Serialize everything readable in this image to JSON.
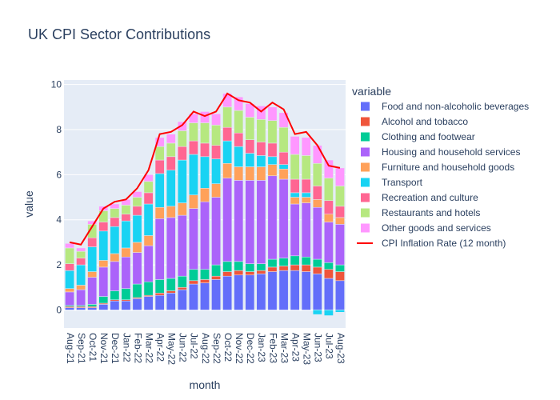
{
  "chart_data": {
    "type": "bar",
    "title": "UK CPI Sector Contributions",
    "xlabel": "month",
    "ylabel": "value",
    "ylim": [
      -0.8,
      10.2
    ],
    "yticks": [
      0,
      2,
      4,
      6,
      8,
      10
    ],
    "grid": true,
    "barmode": "relative",
    "legend_title": "variable",
    "legend_position": "right",
    "categories": [
      "Aug-21",
      "Sep-21",
      "Oct-21",
      "Nov-21",
      "Dec-21",
      "Jan-22",
      "Feb-22",
      "Mar-22",
      "Apr-22",
      "May-22",
      "Jun-22",
      "Jul-22",
      "Aug-22",
      "Sep-22",
      "Oct-22",
      "Nov-22",
      "Dec-22",
      "Jan-23",
      "Feb-23",
      "Mar-23",
      "Apr-23",
      "May-23",
      "Jun-23",
      "Jul-23",
      "Aug-23"
    ],
    "series": [
      {
        "name": "Food and non-alcoholic beverages",
        "color": "#636efa",
        "values": [
          0.1,
          0.1,
          0.1,
          0.25,
          0.4,
          0.4,
          0.5,
          0.6,
          0.65,
          0.75,
          0.9,
          1.15,
          1.2,
          1.35,
          1.5,
          1.55,
          1.55,
          1.6,
          1.7,
          1.75,
          1.75,
          1.7,
          1.6,
          1.4,
          1.3
        ]
      },
      {
        "name": "Alcohol and tobacco",
        "color": "#EF553B",
        "values": [
          0.05,
          0.05,
          0.05,
          0.05,
          0.05,
          0.05,
          0.05,
          0.05,
          0.1,
          0.1,
          0.1,
          0.15,
          0.15,
          0.15,
          0.2,
          0.2,
          0.15,
          0.15,
          0.2,
          0.2,
          0.25,
          0.3,
          0.3,
          0.4,
          0.4
        ]
      },
      {
        "name": "Clothing and footwear",
        "color": "#00cc96",
        "values": [
          0.05,
          0.05,
          0.1,
          0.3,
          0.4,
          0.5,
          0.6,
          0.6,
          0.6,
          0.55,
          0.5,
          0.5,
          0.45,
          0.5,
          0.45,
          0.4,
          0.35,
          0.3,
          0.35,
          0.35,
          0.4,
          0.35,
          0.35,
          0.3,
          0.3
        ]
      },
      {
        "name": "Housing and household services",
        "color": "#ab63fa",
        "values": [
          0.6,
          0.7,
          1.2,
          1.3,
          1.3,
          1.4,
          1.4,
          1.6,
          2.7,
          2.7,
          2.7,
          2.7,
          3.0,
          3.0,
          3.7,
          3.6,
          3.7,
          3.7,
          3.7,
          3.5,
          2.3,
          2.4,
          2.3,
          1.8,
          1.8
        ]
      },
      {
        "name": "Furniture and household goods",
        "color": "#FFA15A",
        "values": [
          0.15,
          0.2,
          0.25,
          0.3,
          0.35,
          0.4,
          0.45,
          0.45,
          0.5,
          0.5,
          0.55,
          0.6,
          0.6,
          0.6,
          0.65,
          0.6,
          0.6,
          0.6,
          0.5,
          0.45,
          0.3,
          0.25,
          0.35,
          0.35,
          0.3
        ]
      },
      {
        "name": "Transport",
        "color": "#19d3f3",
        "values": [
          0.8,
          0.9,
          1.1,
          1.3,
          1.2,
          1.2,
          1.2,
          1.4,
          1.5,
          1.6,
          1.9,
          1.8,
          1.4,
          1.1,
          1.0,
          0.9,
          0.6,
          0.5,
          0.35,
          0.2,
          0.2,
          0.2,
          -0.2,
          -0.25,
          -0.1
        ]
      },
      {
        "name": "Recreation and culture",
        "color": "#FF6692",
        "values": [
          0.3,
          0.3,
          0.4,
          0.4,
          0.4,
          0.3,
          0.4,
          0.5,
          0.6,
          0.6,
          0.6,
          0.6,
          0.6,
          0.6,
          0.6,
          0.6,
          0.6,
          0.6,
          0.6,
          0.55,
          0.6,
          0.6,
          0.6,
          0.6,
          0.5
        ]
      },
      {
        "name": "Restaurants and hotels",
        "color": "#B6E880",
        "values": [
          0.7,
          0.3,
          0.6,
          0.5,
          0.4,
          0.4,
          0.4,
          0.5,
          0.6,
          0.6,
          0.7,
          0.8,
          0.9,
          0.9,
          0.9,
          1.0,
          1.0,
          1.0,
          1.0,
          1.1,
          1.1,
          1.05,
          1.0,
          1.0,
          0.9
        ]
      },
      {
        "name": "Other goods and services",
        "color": "#FF97FF",
        "values": [
          0.2,
          0.15,
          0.15,
          0.2,
          0.2,
          0.25,
          0.25,
          0.3,
          0.4,
          0.4,
          0.4,
          0.4,
          0.5,
          0.5,
          0.6,
          0.6,
          0.6,
          0.6,
          0.6,
          0.65,
          0.8,
          0.8,
          0.8,
          0.8,
          0.8
        ]
      }
    ],
    "line_series": {
      "name": "CPI Inflation Rate (12 month)",
      "color": "#ff0000",
      "values": [
        3.0,
        2.9,
        3.7,
        4.5,
        4.8,
        4.9,
        5.4,
        6.2,
        7.8,
        7.9,
        8.2,
        8.8,
        8.6,
        8.8,
        9.6,
        9.3,
        9.2,
        8.8,
        9.2,
        8.9,
        7.8,
        7.9,
        7.3,
        6.4,
        6.3
      ]
    }
  }
}
